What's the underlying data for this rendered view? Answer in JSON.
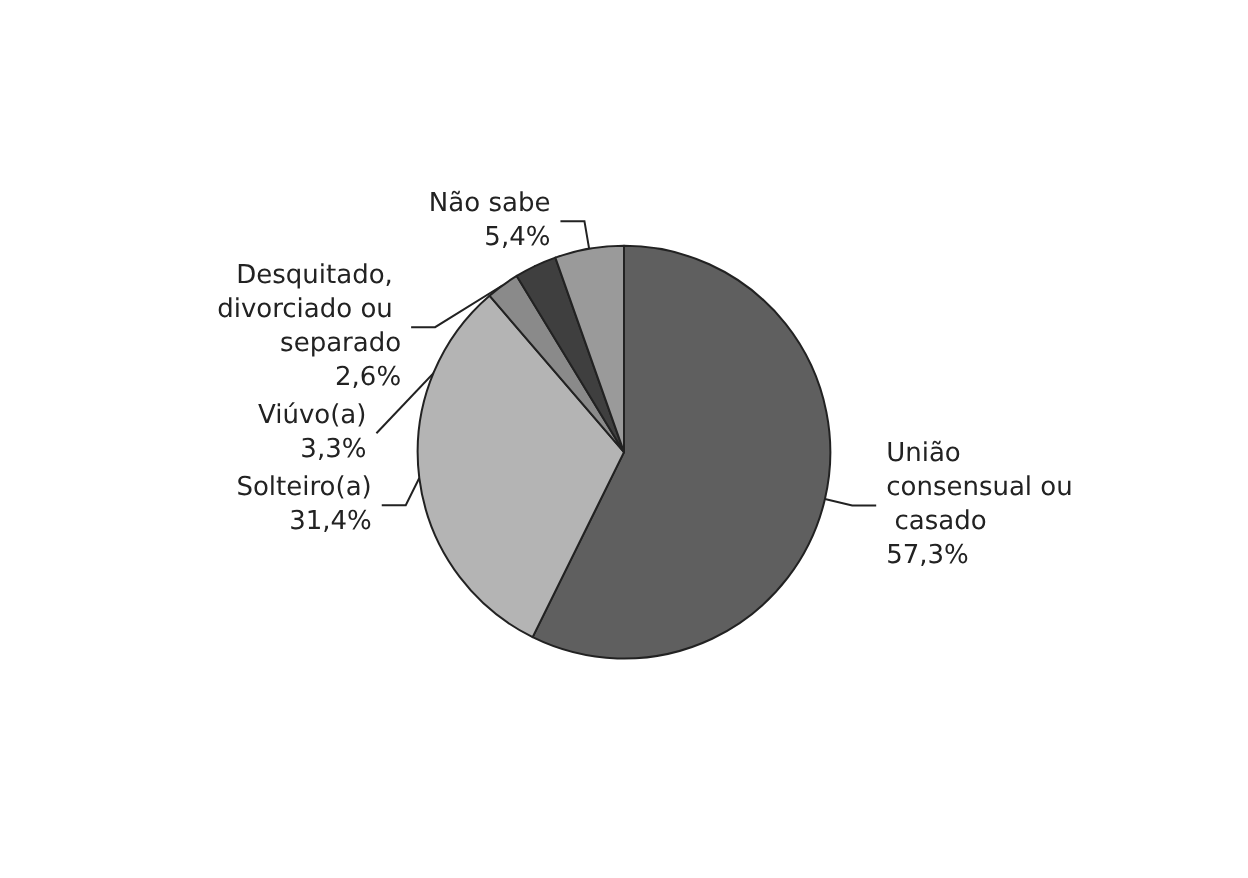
{
  "chart_data": {
    "type": "pie",
    "categories": [
      "União consensual ou casado",
      "Solteiro(a)",
      "Desquitado, divorciado ou separado",
      "Viúvo(a)",
      "Não sabe"
    ],
    "values": [
      57.3,
      31.4,
      2.6,
      3.3,
      5.4
    ],
    "value_labels": [
      "57,3%",
      "31,4%",
      "2,6%",
      "3,3%",
      "5,4%"
    ],
    "colors": [
      "#5f5f5f",
      "#b4b4b4",
      "#8a8a8a",
      "#3f3f3f",
      "#9a9a9a"
    ],
    "legend": false
  }
}
